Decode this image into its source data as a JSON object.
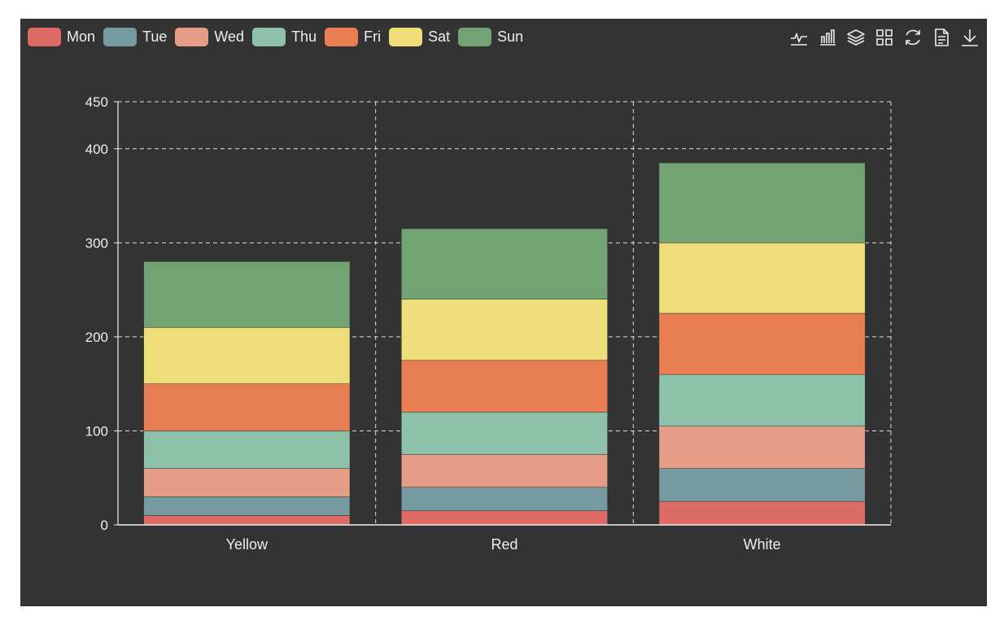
{
  "colors": {
    "background": "#333333",
    "axis": "#eeeeee",
    "grid": "#dddddd",
    "series": [
      "#dd6b66",
      "#759aa0",
      "#e69d87",
      "#8dc1a9",
      "#ea7e53",
      "#eedd78",
      "#73a373"
    ]
  },
  "toolbox": [
    {
      "name": "line-chart-icon"
    },
    {
      "name": "bar-chart-icon"
    },
    {
      "name": "stack-icon"
    },
    {
      "name": "tiled-icon"
    },
    {
      "name": "restore-icon"
    },
    {
      "name": "data-view-icon"
    },
    {
      "name": "download-icon"
    }
  ],
  "chart_data": {
    "type": "bar",
    "stacked": true,
    "categories": [
      "Yellow",
      "Red",
      "White"
    ],
    "series": [
      {
        "name": "Mon",
        "values": [
          10,
          15,
          25
        ]
      },
      {
        "name": "Tue",
        "values": [
          20,
          25,
          35
        ]
      },
      {
        "name": "Wed",
        "values": [
          30,
          35,
          45
        ]
      },
      {
        "name": "Thu",
        "values": [
          40,
          45,
          55
        ]
      },
      {
        "name": "Fri",
        "values": [
          50,
          55,
          65
        ]
      },
      {
        "name": "Sat",
        "values": [
          60,
          65,
          75
        ]
      },
      {
        "name": "Sun",
        "values": [
          70,
          75,
          85
        ]
      }
    ],
    "yticks": [
      0,
      100,
      200,
      300,
      400,
      450
    ],
    "ylim": [
      0,
      450
    ],
    "grid": true,
    "legend": "top-left"
  }
}
